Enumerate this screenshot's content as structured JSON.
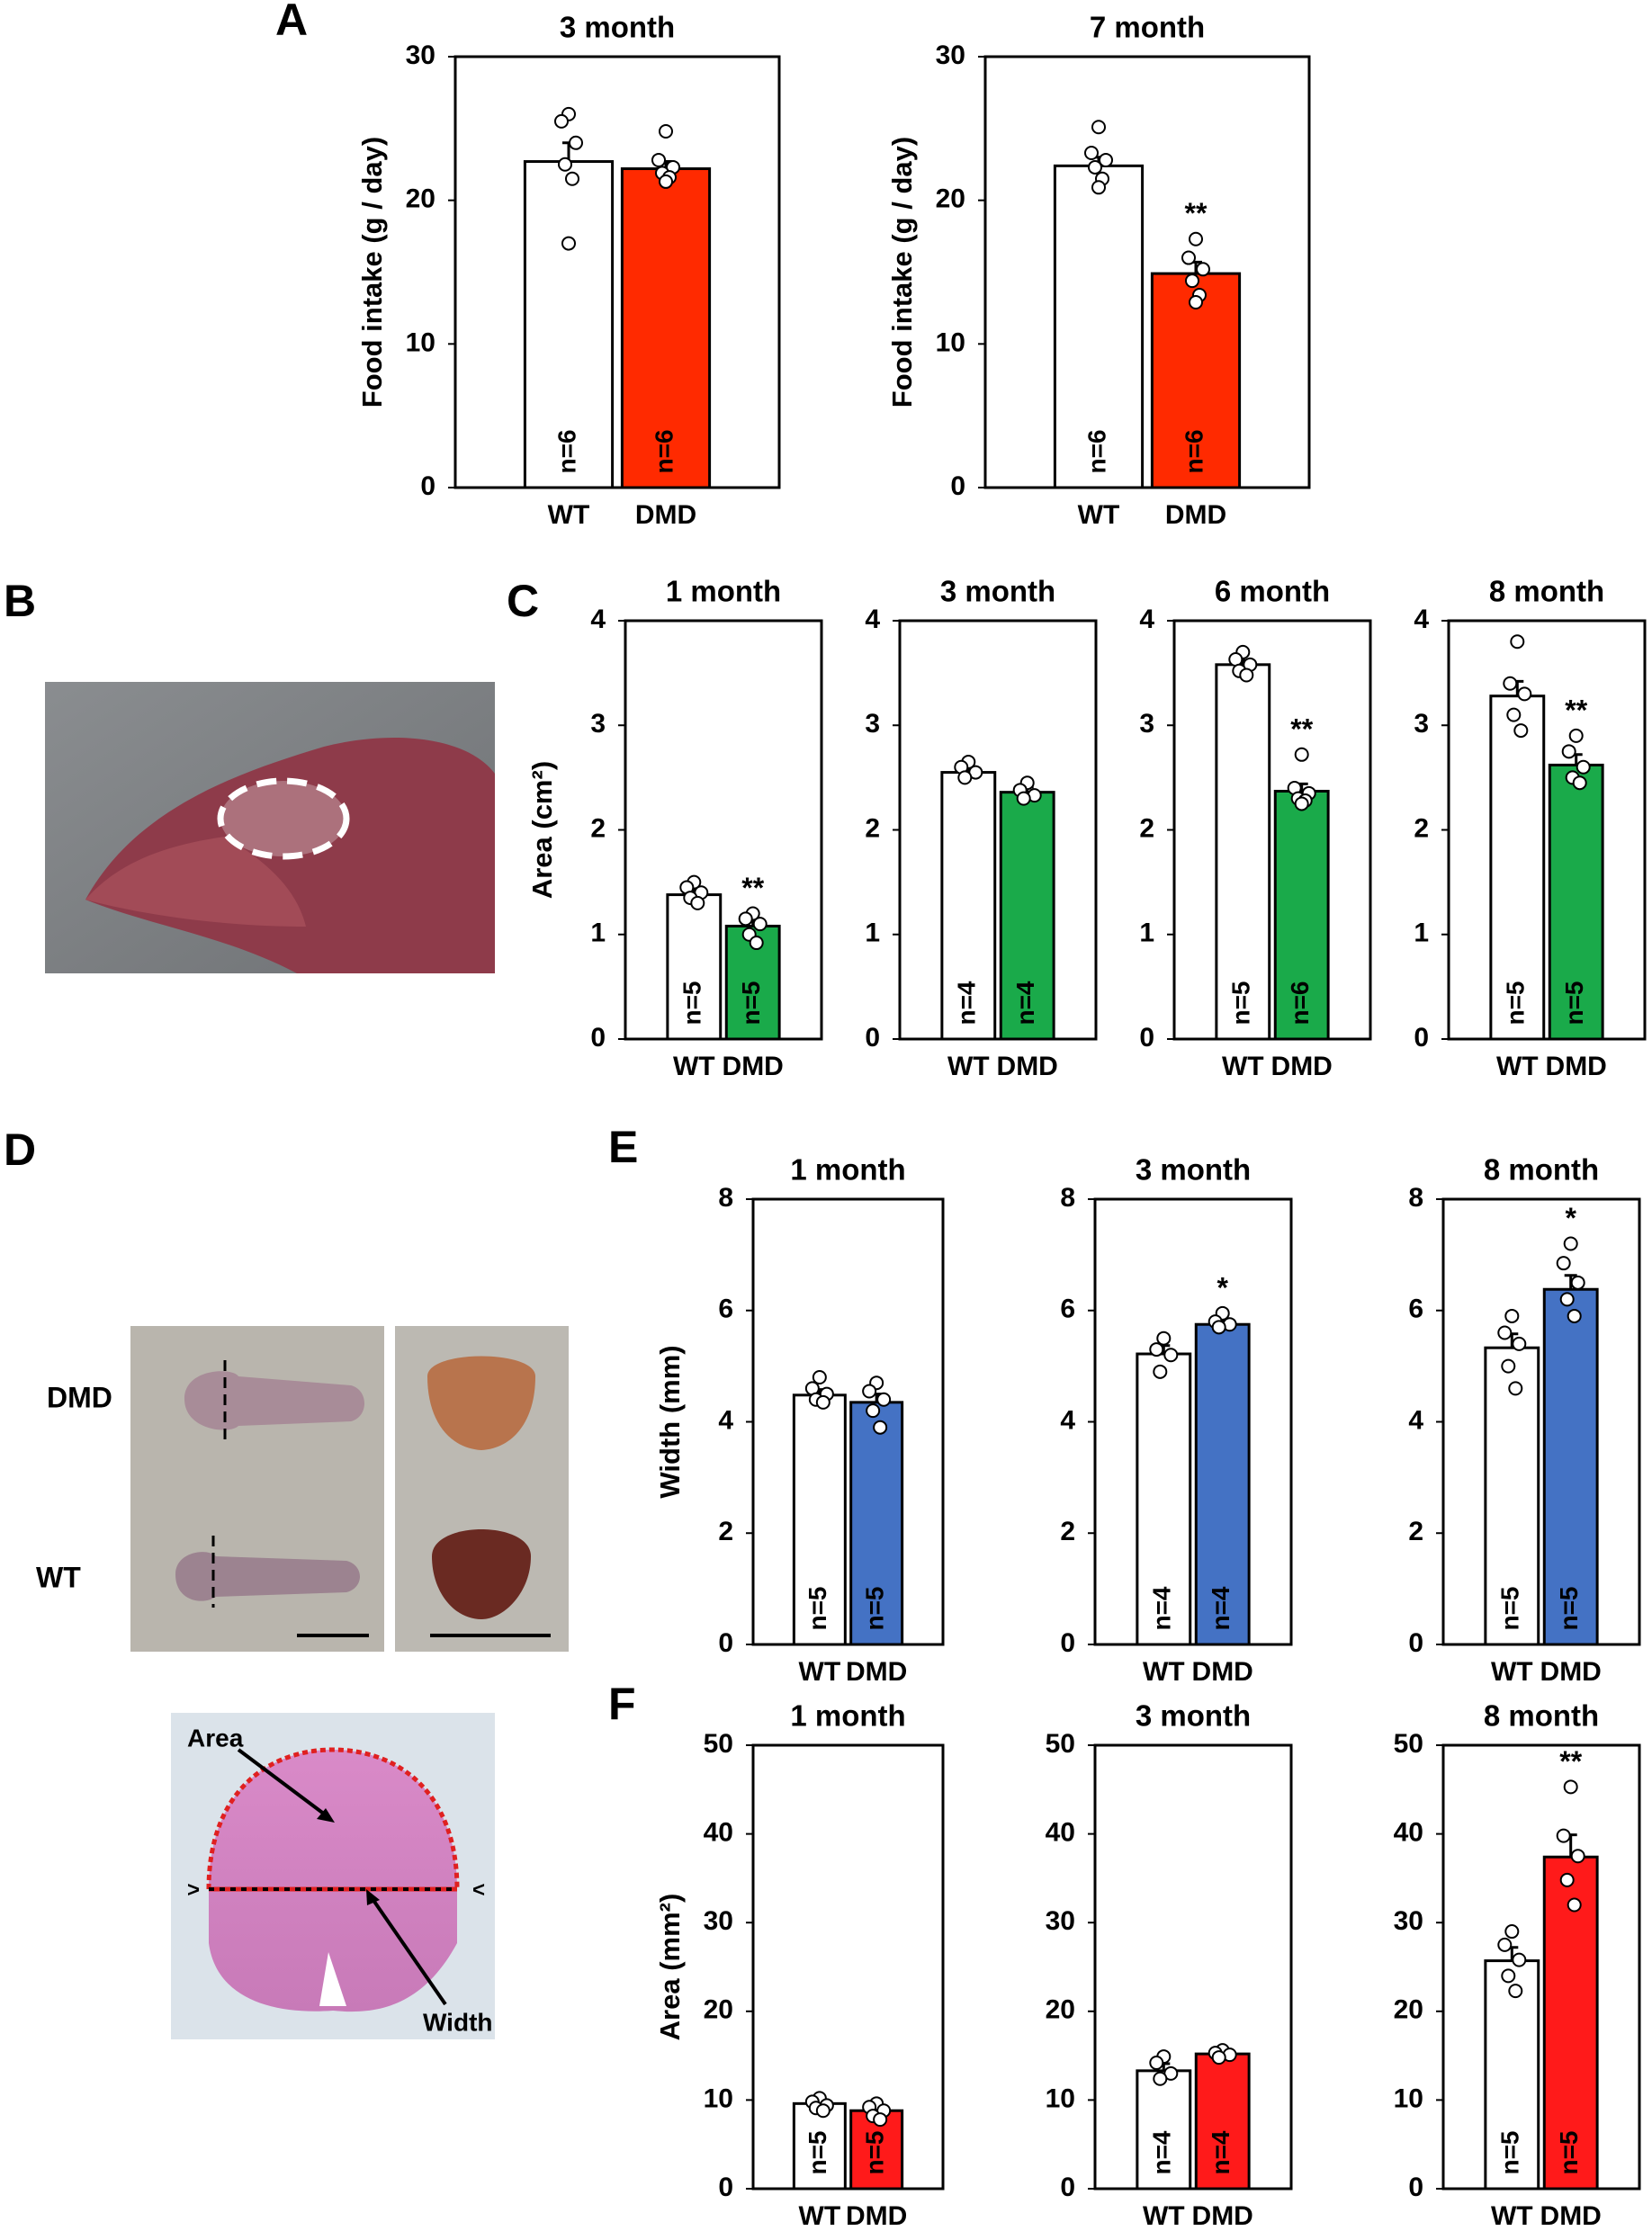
{
  "panel_letters": [
    "A",
    "B",
    "C",
    "D",
    "E",
    "F"
  ],
  "photo_labels": {
    "dmd": "DMD",
    "wt": "WT",
    "area": "Area",
    "width": "Width"
  },
  "chart_data": [
    {
      "type": "bar",
      "title": "3 month",
      "ylabel": "Food intake (g / day)",
      "categories": [
        "WT",
        "DMD"
      ],
      "colors": [
        "#ffffff",
        "#ff2a00"
      ],
      "values": [
        22.7,
        22.2
      ],
      "errors": [
        1.3,
        0.5
      ],
      "points": [
        [
          26,
          25.5,
          24,
          22.5,
          21.5,
          17
        ],
        [
          24.8,
          22.8,
          22.3,
          21.9,
          21.6,
          21.3
        ]
      ],
      "n_labels": [
        "n=6",
        "n=6"
      ],
      "ylim": [
        0,
        30
      ],
      "yticks": [
        0,
        10,
        20,
        30
      ],
      "annotations": []
    },
    {
      "type": "bar",
      "title": "7 month",
      "ylabel": "Food intake (g / day)",
      "categories": [
        "WT",
        "DMD"
      ],
      "colors": [
        "#ffffff",
        "#ff2a00"
      ],
      "values": [
        22.4,
        14.9
      ],
      "errors": [
        0.6,
        0.8
      ],
      "points": [
        [
          25.1,
          23.3,
          22.8,
          22.3,
          21.5,
          20.9
        ],
        [
          17.3,
          16,
          15.2,
          14.4,
          13.4,
          12.9
        ]
      ],
      "n_labels": [
        "n=6",
        "n=6"
      ],
      "ylim": [
        0,
        30
      ],
      "yticks": [
        0,
        10,
        20,
        30
      ],
      "annotations": [
        {
          "text": "**",
          "category": "DMD"
        }
      ]
    },
    {
      "type": "bar",
      "title": "1 month",
      "ylabel": "Area (cm²)",
      "categories": [
        "WT",
        "DMD"
      ],
      "colors": [
        "#ffffff",
        "#1aaa4a"
      ],
      "values": [
        1.38,
        1.08
      ],
      "errors": [
        0.06,
        0.07
      ],
      "points": [
        [
          1.5,
          1.45,
          1.4,
          1.35,
          1.3
        ],
        [
          1.2,
          1.15,
          1.1,
          1.0,
          0.92
        ]
      ],
      "n_labels": [
        "n=5",
        "n=5"
      ],
      "ylim": [
        0,
        4
      ],
      "yticks": [
        0,
        1,
        2,
        3,
        4
      ],
      "annotations": [
        {
          "text": "**",
          "category": "DMD"
        }
      ]
    },
    {
      "type": "bar",
      "title": "3 month",
      "categories": [
        "WT",
        "DMD"
      ],
      "colors": [
        "#ffffff",
        "#1aaa4a"
      ],
      "values": [
        2.55,
        2.36
      ],
      "errors": [
        0.05,
        0.05
      ],
      "points": [
        [
          2.65,
          2.6,
          2.55,
          2.5
        ],
        [
          2.45,
          2.38,
          2.33,
          2.3
        ]
      ],
      "n_labels": [
        "n=4",
        "n=4"
      ],
      "ylim": [
        0,
        4
      ],
      "yticks": [
        0,
        1,
        2,
        3,
        4
      ],
      "annotations": []
    },
    {
      "type": "bar",
      "title": "6 month",
      "categories": [
        "WT",
        "DMD"
      ],
      "colors": [
        "#ffffff",
        "#1aaa4a"
      ],
      "values": [
        3.58,
        2.37
      ],
      "errors": [
        0.04,
        0.07
      ],
      "points": [
        [
          3.7,
          3.63,
          3.58,
          3.52,
          3.48
        ],
        [
          2.72,
          2.4,
          2.35,
          2.3,
          2.28,
          2.25
        ]
      ],
      "n_labels": [
        "n=5",
        "n=6"
      ],
      "ylim": [
        0,
        4
      ],
      "yticks": [
        0,
        1,
        2,
        3,
        4
      ],
      "annotations": [
        {
          "text": "**",
          "category": "DMD"
        }
      ]
    },
    {
      "type": "bar",
      "title": "8 month",
      "categories": [
        "WT",
        "DMD"
      ],
      "colors": [
        "#ffffff",
        "#1aaa4a"
      ],
      "values": [
        3.28,
        2.62
      ],
      "errors": [
        0.14,
        0.1
      ],
      "points": [
        [
          3.8,
          3.4,
          3.3,
          3.1,
          2.95
        ],
        [
          2.9,
          2.75,
          2.6,
          2.5,
          2.45
        ]
      ],
      "n_labels": [
        "n=5",
        "n=5"
      ],
      "ylim": [
        0,
        4
      ],
      "yticks": [
        0,
        1,
        2,
        3,
        4
      ],
      "annotations": [
        {
          "text": "**",
          "category": "DMD"
        }
      ]
    },
    {
      "type": "bar",
      "title": "1 month",
      "ylabel": "Width (mm)",
      "categories": [
        "WT",
        "DMD"
      ],
      "colors": [
        "#ffffff",
        "#4472c4"
      ],
      "values": [
        4.48,
        4.35
      ],
      "errors": [
        0.1,
        0.15
      ],
      "points": [
        [
          4.8,
          4.6,
          4.5,
          4.4,
          4.35
        ],
        [
          4.7,
          4.55,
          4.4,
          4.2,
          3.9
        ]
      ],
      "n_labels": [
        "n=5",
        "n=5"
      ],
      "ylim": [
        0,
        8
      ],
      "yticks": [
        0,
        2,
        4,
        6,
        8
      ],
      "annotations": []
    },
    {
      "type": "bar",
      "title": "3 month",
      "categories": [
        "WT",
        "DMD"
      ],
      "colors": [
        "#ffffff",
        "#4472c4"
      ],
      "values": [
        5.22,
        5.75
      ],
      "errors": [
        0.15,
        0.1
      ],
      "points": [
        [
          5.5,
          5.3,
          5.2,
          4.9
        ],
        [
          5.95,
          5.8,
          5.75,
          5.7
        ]
      ],
      "n_labels": [
        "n=4",
        "n=4"
      ],
      "ylim": [
        0,
        8
      ],
      "yticks": [
        0,
        2,
        4,
        6,
        8
      ],
      "annotations": [
        {
          "text": "*",
          "category": "DMD"
        }
      ]
    },
    {
      "type": "bar",
      "title": "8 month",
      "categories": [
        "WT",
        "DMD"
      ],
      "colors": [
        "#ffffff",
        "#4472c4"
      ],
      "values": [
        5.33,
        6.38
      ],
      "errors": [
        0.25,
        0.25
      ],
      "points": [
        [
          5.9,
          5.6,
          5.4,
          5.0,
          4.6
        ],
        [
          7.2,
          6.85,
          6.5,
          6.2,
          5.9
        ]
      ],
      "n_labels": [
        "n=5",
        "n=5"
      ],
      "ylim": [
        0,
        8
      ],
      "yticks": [
        0,
        2,
        4,
        6,
        8
      ],
      "annotations": [
        {
          "text": "*",
          "category": "DMD"
        }
      ]
    },
    {
      "type": "bar",
      "title": "1 month",
      "ylabel": "Area (mm²)",
      "categories": [
        "WT",
        "DMD"
      ],
      "colors": [
        "#ffffff",
        "#ff1a1a"
      ],
      "values": [
        9.6,
        8.8
      ],
      "errors": [
        0.4,
        0.5
      ],
      "points": [
        [
          10.2,
          9.8,
          9.4,
          9.1,
          8.8
        ],
        [
          9.6,
          9.2,
          8.8,
          8.2,
          7.8
        ]
      ],
      "n_labels": [
        "n=5",
        "n=5"
      ],
      "ylim": [
        0,
        50
      ],
      "yticks": [
        0,
        10,
        20,
        30,
        40,
        50
      ],
      "annotations": []
    },
    {
      "type": "bar",
      "title": "3 month",
      "categories": [
        "WT",
        "DMD"
      ],
      "colors": [
        "#ffffff",
        "#ff1a1a"
      ],
      "values": [
        13.3,
        15.2
      ],
      "errors": [
        0.8,
        0.3
      ],
      "points": [
        [
          14.9,
          14.2,
          13,
          12.4
        ],
        [
          15.6,
          15.3,
          15.1,
          14.8
        ]
      ],
      "n_labels": [
        "n=4",
        "n=4"
      ],
      "ylim": [
        0,
        50
      ],
      "yticks": [
        0,
        10,
        20,
        30,
        40,
        50
      ],
      "annotations": []
    },
    {
      "type": "bar",
      "title": "8 month",
      "categories": [
        "WT",
        "DMD"
      ],
      "colors": [
        "#ffffff",
        "#ff1a1a"
      ],
      "values": [
        25.7,
        37.4
      ],
      "errors": [
        1.5,
        2.5
      ],
      "points": [
        [
          29,
          27.5,
          25.8,
          24,
          22.3
        ],
        [
          45.3,
          39.8,
          37.5,
          34.8,
          32
        ]
      ],
      "n_labels": [
        "n=5",
        "n=5"
      ],
      "ylim": [
        0,
        50
      ],
      "yticks": [
        0,
        10,
        20,
        30,
        40,
        50
      ],
      "annotations": [
        {
          "text": "**",
          "category": "DMD"
        }
      ]
    }
  ]
}
